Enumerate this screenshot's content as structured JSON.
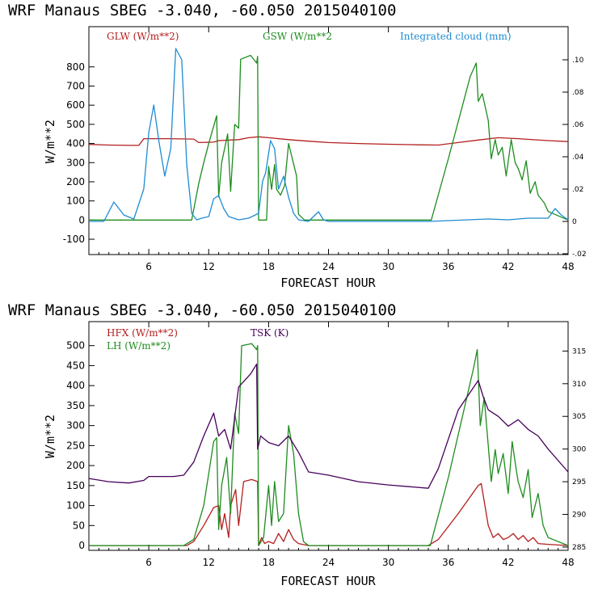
{
  "chart_data": [
    {
      "type": "line",
      "title": "WRF   Manaus SBEG   -3.040, -60.050  2015040100",
      "xlabel": "FORECAST HOUR",
      "ylabel": "W/m**2",
      "xlim": [
        0,
        48
      ],
      "ylim": [
        -180,
        1010
      ],
      "y2lim": [
        -0.0205,
        0.1205
      ],
      "xticks": [
        6,
        12,
        18,
        24,
        30,
        36,
        42,
        48
      ],
      "xtick_labels": [
        "6",
        "12",
        "18",
        "24",
        "30",
        "36",
        "42",
        "48"
      ],
      "yticks": [
        -100,
        0,
        100,
        200,
        300,
        400,
        500,
        600,
        700,
        800
      ],
      "ytick_labels": [
        "-100",
        "0",
        "100",
        "200",
        "300",
        "400",
        "500",
        "600",
        "700",
        "800"
      ],
      "y2ticks": [
        -0.02,
        0,
        0.02,
        0.04,
        0.06,
        0.08,
        0.1
      ],
      "y2tick_labels": [
        "-.02",
        "0",
        ".02",
        ".04",
        ".06",
        ".08",
        ".10"
      ],
      "series": [
        {
          "name": "GLW (W/m**2)",
          "axis": "left",
          "color": "#b41e1e",
          "x": [
            0,
            2,
            4,
            5,
            5.5,
            8,
            10.5,
            11,
            12.5,
            13,
            15,
            16,
            17,
            18,
            20,
            22,
            24,
            27,
            30,
            33,
            35,
            37,
            39,
            41,
            43,
            46,
            48
          ],
          "y": [
            395,
            392,
            390,
            390,
            425,
            425,
            423,
            405,
            407,
            415,
            420,
            430,
            435,
            430,
            420,
            412,
            405,
            400,
            396,
            393,
            392,
            405,
            418,
            430,
            425,
            415,
            410
          ]
        },
        {
          "name": "GSW (W/m**2",
          "axis": "left",
          "color": "#1e8c1e",
          "x": [
            0,
            10.3,
            11,
            11.5,
            12,
            12.8,
            13,
            13.3,
            13.9,
            14.2,
            14.6,
            15,
            15.2,
            16.2,
            16.8,
            16.9,
            17,
            17.8,
            18,
            18.3,
            18.6,
            18.8,
            19.2,
            19.6,
            20,
            20.8,
            21,
            21.6,
            22,
            34.3,
            36,
            38.2,
            38.8,
            39,
            39.4,
            40,
            40.3,
            40.7,
            41,
            41.4,
            41.8,
            42.3,
            42.7,
            43,
            43.4,
            43.8,
            44.2,
            44.7,
            45,
            45.6,
            46,
            48
          ],
          "y": [
            0,
            0,
            190,
            300,
            400,
            545,
            120,
            300,
            450,
            150,
            500,
            480,
            840,
            860,
            820,
            855,
            0,
            0,
            280,
            160,
            290,
            160,
            130,
            180,
            400,
            230,
            30,
            0,
            0,
            0,
            320,
            750,
            820,
            620,
            660,
            520,
            320,
            420,
            340,
            380,
            230,
            420,
            300,
            270,
            210,
            310,
            140,
            200,
            130,
            90,
            45,
            0
          ]
        },
        {
          "name": "Integrated cloud (mm)",
          "axis": "right",
          "color": "#1e8cd2",
          "x": [
            0,
            1.5,
            2.5,
            3.5,
            4.5,
            5.5,
            6,
            6.5,
            7,
            7.6,
            8.2,
            8.7,
            9.3,
            9.8,
            10.3,
            10.8,
            11.3,
            12,
            12.5,
            13,
            13.5,
            14,
            15,
            16,
            17,
            17.4,
            17.7,
            18.2,
            18.6,
            19,
            19.5,
            20,
            20.5,
            21,
            22,
            23,
            23.5,
            24,
            25,
            28,
            34,
            38,
            40,
            42,
            44,
            46,
            46.7,
            47.3,
            48
          ],
          "y": [
            0,
            0,
            0.012,
            0.004,
            0.0015,
            0.02,
            0.055,
            0.072,
            0.05,
            0.028,
            0.045,
            0.107,
            0.1,
            0.035,
            0.005,
            0.001,
            0.002,
            0.003,
            0.014,
            0.016,
            0.008,
            0.003,
            0.001,
            0.002,
            0.005,
            0.025,
            0.03,
            0.05,
            0.045,
            0.02,
            0.028,
            0.015,
            0.005,
            0.001,
            0,
            0.006,
            0.001,
            0,
            0,
            0,
            0,
            0.001,
            0.0015,
            0.001,
            0.002,
            0.002,
            0.008,
            0.004,
            0.001
          ]
        }
      ]
    },
    {
      "type": "line",
      "title": "WRF   Manaus SBEG   -3.040, -60.050  2015040100",
      "xlabel": "FORECAST HOUR",
      "ylabel": "W/m**2",
      "xlim": [
        0,
        48
      ],
      "ylim": [
        -12,
        560
      ],
      "y2lim": [
        284.5,
        319.5
      ],
      "xticks": [
        6,
        12,
        18,
        24,
        30,
        36,
        42,
        48
      ],
      "xtick_labels": [
        "6",
        "12",
        "18",
        "24",
        "30",
        "36",
        "42",
        "48"
      ],
      "yticks": [
        0,
        50,
        100,
        150,
        200,
        250,
        300,
        350,
        400,
        450,
        500
      ],
      "ytick_labels": [
        "0",
        "50",
        "100",
        "150",
        "200",
        "250",
        "300",
        "350",
        "400",
        "450",
        "500"
      ],
      "y2ticks": [
        285,
        290,
        295,
        300,
        305,
        310,
        315
      ],
      "y2tick_labels": [
        "285",
        "290",
        "295",
        "300",
        "305",
        "310",
        "315"
      ],
      "series": [
        {
          "name": "HFX (W/m**2)",
          "axis": "left",
          "color": "#b41e1e",
          "x": [
            0,
            9.8,
            10.5,
            11.5,
            12.5,
            13,
            13.3,
            13.6,
            14,
            14.2,
            14.7,
            15,
            15.5,
            16.3,
            16.9,
            17,
            17.3,
            17.6,
            18,
            18.5,
            19,
            19.5,
            20,
            20.5,
            21,
            22,
            34,
            35,
            37,
            39,
            39.3,
            40,
            40.5,
            41,
            41.5,
            42,
            42.5,
            43,
            43.5,
            44,
            44.5,
            45,
            46,
            48
          ],
          "y": [
            0,
            0,
            10,
            50,
            95,
            100,
            40,
            80,
            20,
            100,
            140,
            50,
            160,
            165,
            160,
            0,
            20,
            5,
            10,
            5,
            30,
            10,
            40,
            15,
            5,
            0,
            0,
            15,
            80,
            150,
            155,
            50,
            20,
            30,
            15,
            20,
            30,
            15,
            25,
            10,
            20,
            5,
            3,
            0
          ]
        },
        {
          "name": "LH (W/m**2)",
          "axis": "left",
          "color": "#1e8c1e",
          "x": [
            0,
            9.5,
            10.5,
            11.5,
            12,
            12.5,
            12.8,
            13,
            13.3,
            13.8,
            14.2,
            14.6,
            15,
            15.3,
            16.3,
            16.8,
            16.9,
            17,
            17.5,
            18,
            18.3,
            18.6,
            19,
            19.5,
            20,
            20.5,
            21,
            21.5,
            22,
            34.2,
            36,
            38.5,
            38.9,
            39.2,
            39.6,
            40,
            40.3,
            40.7,
            41,
            41.5,
            42,
            42.4,
            42.8,
            43,
            43.5,
            44,
            44.4,
            45,
            45.5,
            46,
            48
          ],
          "y": [
            0,
            0,
            15,
            100,
            180,
            260,
            270,
            40,
            150,
            220,
            80,
            330,
            280,
            500,
            505,
            490,
            500,
            0,
            20,
            150,
            50,
            160,
            60,
            80,
            300,
            230,
            80,
            10,
            0,
            0,
            170,
            440,
            490,
            300,
            370,
            250,
            160,
            240,
            180,
            230,
            130,
            260,
            190,
            160,
            120,
            190,
            70,
            130,
            50,
            20,
            0
          ]
        },
        {
          "name": "TSK (K)",
          "axis": "right",
          "color": "#46005a",
          "x": [
            0,
            2,
            4,
            5.5,
            6,
            8.5,
            9.5,
            10.5,
            11.5,
            12.5,
            13,
            13.6,
            14.2,
            15,
            16.2,
            16.8,
            16.9,
            17.2,
            18,
            19,
            20,
            21,
            22,
            24,
            27,
            30,
            34,
            35,
            37,
            39,
            39.5,
            40,
            41,
            42,
            43,
            44,
            45,
            46,
            48
          ],
          "y": [
            295.5,
            295,
            294.8,
            295.2,
            295.8,
            295.8,
            296,
            298,
            302,
            305.5,
            302,
            303,
            300,
            309.5,
            311.5,
            313,
            300,
            302,
            301,
            300.5,
            302,
            299.5,
            296.5,
            296,
            295,
            294.5,
            294,
            297,
            306,
            310.5,
            308,
            306,
            305,
            303.5,
            304.5,
            303,
            302,
            300,
            296.5
          ]
        }
      ]
    }
  ]
}
